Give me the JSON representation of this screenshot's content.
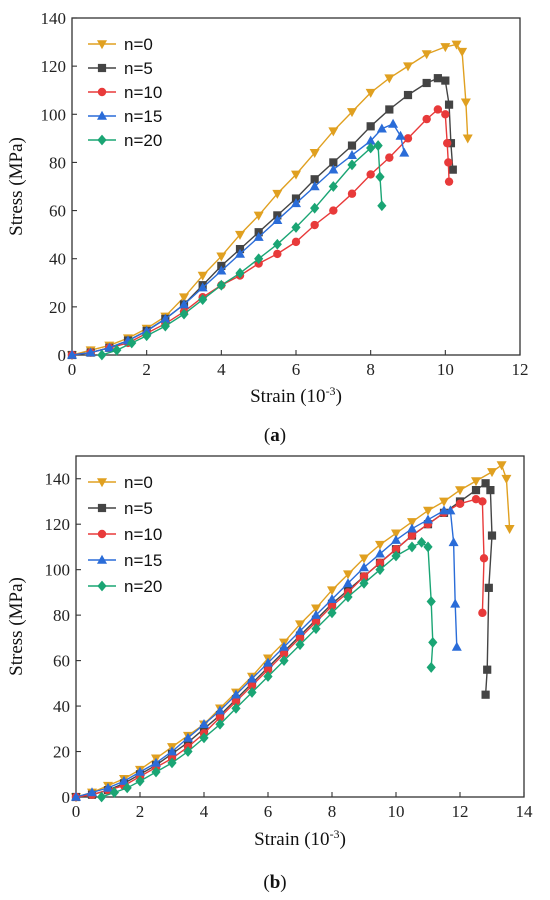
{
  "chart_data": [
    {
      "type": "line",
      "caption": "(a)",
      "caption_parts": [
        "(",
        "a",
        ")"
      ],
      "xlabel": "Strain (10",
      "xlabel_sup": "-3",
      "xlabel_end": ")",
      "ylabel": "Stress (MPa)",
      "xlim": [
        0,
        12
      ],
      "ylim": [
        0,
        140
      ],
      "xticks": [
        0,
        2,
        4,
        6,
        8,
        10,
        12
      ],
      "yticks": [
        0,
        20,
        40,
        60,
        80,
        100,
        120,
        140
      ],
      "legend_position": "top-left",
      "series": [
        {
          "name": "n=0",
          "color": "#e0a020",
          "marker": "triangle-down",
          "x": [
            0,
            0.5,
            1,
            1.5,
            2,
            2.5,
            3,
            3.5,
            4,
            4.5,
            5,
            5.5,
            6,
            6.5,
            7,
            7.5,
            8,
            8.5,
            9,
            9.5,
            10,
            10.3,
            10.45,
            10.55,
            10.6
          ],
          "y": [
            0,
            2,
            4,
            7,
            11,
            16,
            24,
            33,
            41,
            50,
            58,
            67,
            75,
            84,
            93,
            101,
            109,
            115,
            120,
            125,
            128,
            129,
            126,
            105,
            90
          ]
        },
        {
          "name": "n=5",
          "color": "#444444",
          "marker": "square",
          "x": [
            0,
            0.5,
            1,
            1.5,
            2,
            2.5,
            3,
            3.5,
            4,
            4.5,
            5,
            5.5,
            6,
            6.5,
            7,
            7.5,
            8,
            8.5,
            9,
            9.5,
            9.8,
            10.0,
            10.1,
            10.15,
            10.2
          ],
          "y": [
            0,
            1,
            3,
            6,
            10,
            15,
            21,
            29,
            37,
            44,
            51,
            58,
            65,
            73,
            80,
            87,
            95,
            102,
            108,
            113,
            115,
            114,
            104,
            88,
            77
          ]
        },
        {
          "name": "n=10",
          "color": "#e83a3a",
          "marker": "circle",
          "x": [
            0,
            0.5,
            1,
            1.5,
            2,
            2.5,
            3,
            3.5,
            4,
            4.5,
            5,
            5.5,
            6,
            6.5,
            7,
            7.5,
            8,
            8.5,
            9,
            9.5,
            9.8,
            10.0,
            10.05,
            10.08,
            10.1
          ],
          "y": [
            0,
            1,
            3,
            5,
            9,
            13,
            18,
            24,
            29,
            33,
            38,
            42,
            47,
            54,
            60,
            67,
            75,
            82,
            90,
            98,
            102,
            100,
            88,
            80,
            72
          ]
        },
        {
          "name": "n=15",
          "color": "#2a6cd8",
          "marker": "triangle-up",
          "x": [
            0,
            0.5,
            1,
            1.5,
            2,
            2.5,
            3,
            3.5,
            4,
            4.5,
            5,
            5.5,
            6,
            6.5,
            7,
            7.5,
            8,
            8.3,
            8.6,
            8.8,
            8.9
          ],
          "y": [
            0,
            1,
            3,
            6,
            10,
            15,
            21,
            28,
            35,
            42,
            49,
            56,
            63,
            70,
            77,
            83,
            89,
            94,
            96,
            91,
            84
          ]
        },
        {
          "name": "n=20",
          "color": "#1aa574",
          "marker": "diamond",
          "x": [
            0.8,
            1.2,
            1.6,
            2,
            2.5,
            3,
            3.5,
            4,
            4.5,
            5,
            5.5,
            6,
            6.5,
            7,
            7.5,
            8,
            8.2,
            8.25,
            8.3
          ],
          "y": [
            0,
            2,
            5,
            8,
            12,
            17,
            23,
            29,
            34,
            40,
            46,
            53,
            61,
            70,
            79,
            86,
            87,
            74,
            62
          ]
        }
      ]
    },
    {
      "type": "line",
      "caption": "(b)",
      "caption_parts": [
        "(",
        "b",
        ")"
      ],
      "xlabel": "Strain (10",
      "xlabel_sup": "-3",
      "xlabel_end": ")",
      "ylabel": "Stress (MPa)",
      "xlim": [
        0,
        14
      ],
      "ylim": [
        0,
        150
      ],
      "xticks": [
        0,
        2,
        4,
        6,
        8,
        10,
        12,
        14
      ],
      "yticks": [
        0,
        20,
        40,
        60,
        80,
        100,
        120,
        140
      ],
      "legend_position": "top-left",
      "series": [
        {
          "name": "n=0",
          "color": "#e0a020",
          "marker": "triangle-down",
          "x": [
            0,
            0.5,
            1,
            1.5,
            2,
            2.5,
            3,
            3.5,
            4,
            4.5,
            5,
            5.5,
            6,
            6.5,
            7,
            7.5,
            8,
            8.5,
            9,
            9.5,
            10,
            10.5,
            11,
            11.5,
            12,
            12.5,
            13,
            13.3,
            13.45,
            13.55
          ],
          "y": [
            0,
            2,
            5,
            8,
            12,
            17,
            22,
            27,
            32,
            39,
            46,
            53,
            61,
            68,
            76,
            83,
            91,
            98,
            105,
            111,
            116,
            121,
            126,
            130,
            135,
            139,
            143,
            146,
            140,
            118
          ]
        },
        {
          "name": "n=5",
          "color": "#444444",
          "marker": "square",
          "x": [
            0,
            0.5,
            1,
            1.5,
            2,
            2.5,
            3,
            3.5,
            4,
            4.5,
            5,
            5.5,
            6,
            6.5,
            7,
            7.5,
            8,
            8.5,
            9,
            9.5,
            10,
            10.5,
            11,
            11.5,
            12,
            12.5,
            12.8,
            12.95,
            13.0,
            12.9,
            12.85,
            12.8
          ],
          "y": [
            0,
            1,
            3,
            6,
            10,
            14,
            19,
            24,
            30,
            36,
            43,
            50,
            57,
            64,
            71,
            78,
            85,
            91,
            97,
            103,
            109,
            115,
            120,
            125,
            130,
            135,
            138,
            135,
            115,
            92,
            56,
            45
          ]
        },
        {
          "name": "n=10",
          "color": "#e83a3a",
          "marker": "circle",
          "x": [
            0,
            0.5,
            1,
            1.5,
            2,
            2.5,
            3,
            3.5,
            4,
            4.5,
            5,
            5.5,
            6,
            6.5,
            7,
            7.5,
            8,
            8.5,
            9,
            9.5,
            10,
            10.5,
            11,
            11.5,
            12,
            12.5,
            12.7,
            12.75,
            12.7
          ],
          "y": [
            0,
            1,
            3,
            5,
            9,
            13,
            17,
            22,
            28,
            35,
            42,
            49,
            56,
            63,
            70,
            77,
            84,
            90,
            97,
            103,
            109,
            115,
            120,
            125,
            129,
            131,
            130,
            105,
            81
          ]
        },
        {
          "name": "n=15",
          "color": "#2a6cd8",
          "marker": "triangle-up",
          "x": [
            0,
            0.5,
            1,
            1.5,
            2,
            2.5,
            3,
            3.5,
            4,
            4.5,
            5,
            5.5,
            6,
            6.5,
            7,
            7.5,
            8,
            8.5,
            9,
            9.5,
            10,
            10.5,
            11,
            11.5,
            11.7,
            11.8,
            11.85,
            11.9
          ],
          "y": [
            0,
            2,
            4,
            7,
            11,
            15,
            20,
            26,
            32,
            38,
            45,
            52,
            59,
            66,
            73,
            80,
            87,
            94,
            101,
            107,
            113,
            118,
            122,
            126,
            126,
            112,
            85,
            66
          ]
        },
        {
          "name": "n=20",
          "color": "#1aa574",
          "marker": "diamond",
          "x": [
            0.8,
            1.2,
            1.6,
            2,
            2.5,
            3,
            3.5,
            4,
            4.5,
            5,
            5.5,
            6,
            6.5,
            7,
            7.5,
            8,
            8.5,
            9,
            9.5,
            10,
            10.5,
            10.8,
            11.0,
            11.1,
            11.15,
            11.1
          ],
          "y": [
            0,
            2,
            4,
            7,
            11,
            15,
            20,
            26,
            32,
            39,
            46,
            53,
            60,
            67,
            74,
            81,
            88,
            94,
            100,
            106,
            110,
            112,
            110,
            86,
            68,
            57
          ]
        }
      ]
    }
  ]
}
